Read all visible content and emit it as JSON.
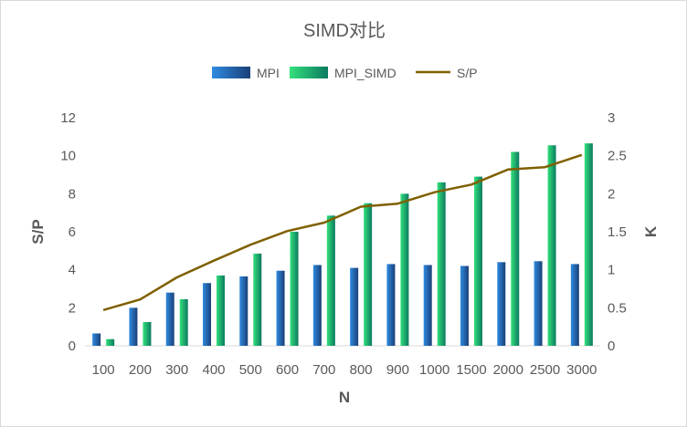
{
  "chart_data": {
    "type": "bar",
    "title": "SIMD对比",
    "categories": [
      "100",
      "200",
      "300",
      "400",
      "500",
      "600",
      "700",
      "800",
      "900",
      "1000",
      "1500",
      "2000",
      "2500",
      "3000"
    ],
    "series": [
      {
        "name": "MPI",
        "kind": "bar",
        "axis": "left",
        "color": "#1f5fa8",
        "values": [
          0.65,
          2.0,
          2.8,
          3.3,
          3.65,
          3.95,
          4.25,
          4.1,
          4.3,
          4.25,
          4.2,
          4.4,
          4.45,
          4.3
        ]
      },
      {
        "name": "MPI_SIMD",
        "kind": "bar",
        "axis": "left",
        "color": "#1ec36a",
        "values": [
          0.35,
          1.25,
          2.45,
          3.7,
          4.85,
          6.0,
          6.85,
          7.5,
          8.0,
          8.6,
          8.9,
          10.2,
          10.55,
          10.65
        ]
      },
      {
        "name": "S/P",
        "kind": "line",
        "axis": "right",
        "color": "#7f6000",
        "values": [
          0.47,
          0.61,
          0.9,
          1.12,
          1.33,
          1.51,
          1.62,
          1.83,
          1.87,
          2.02,
          2.12,
          2.32,
          2.35,
          2.51
        ]
      }
    ],
    "xlabel": "N",
    "ylabel": "S/P",
    "y2label": "K",
    "ylim": [
      0,
      12
    ],
    "yticks": [
      "0",
      "2",
      "4",
      "6",
      "8",
      "10",
      "12"
    ],
    "y2lim": [
      0,
      3
    ],
    "y2ticks": [
      "0",
      "0.5",
      "1",
      "1.5",
      "2",
      "2.5",
      "3"
    ],
    "grid": false,
    "legend_position": "top"
  }
}
